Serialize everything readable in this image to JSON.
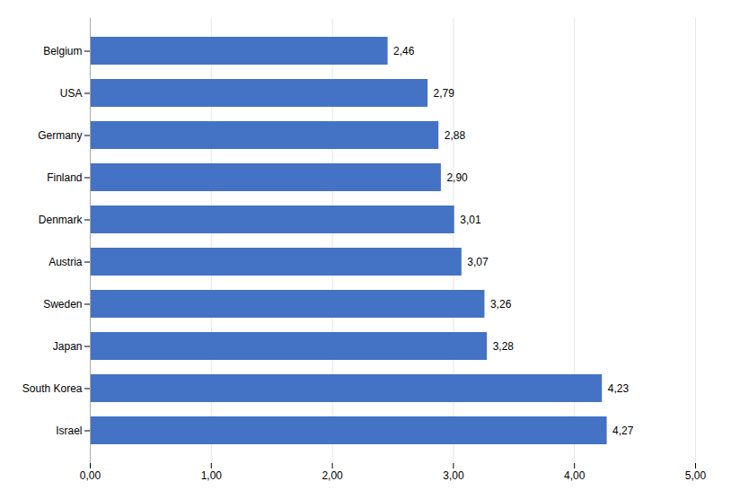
{
  "chart_data": {
    "type": "bar",
    "orientation": "horizontal",
    "categories": [
      "Belgium",
      "USA",
      "Germany",
      "Finland",
      "Denmark",
      "Austria",
      "Sweden",
      "Japan",
      "South Korea",
      "Israel"
    ],
    "values": [
      2.46,
      2.79,
      2.88,
      2.9,
      3.01,
      3.07,
      3.26,
      3.28,
      4.23,
      4.27
    ],
    "value_labels": [
      "2,46",
      "2,79",
      "2,88",
      "2,90",
      "3,01",
      "3,07",
      "3,26",
      "3,28",
      "4,23",
      "4,27"
    ],
    "data_labels": true,
    "color": "#4472C4",
    "xlim": [
      0,
      5.0
    ],
    "xticks": [
      {
        "value": 0.0,
        "label": "0,00"
      },
      {
        "value": 1.0,
        "label": "1,00"
      },
      {
        "value": 2.0,
        "label": "2,00"
      },
      {
        "value": 3.0,
        "label": "3,00"
      },
      {
        "value": 4.0,
        "label": "4,00"
      },
      {
        "value": 5.0,
        "label": "5,00"
      }
    ],
    "grid": true
  }
}
